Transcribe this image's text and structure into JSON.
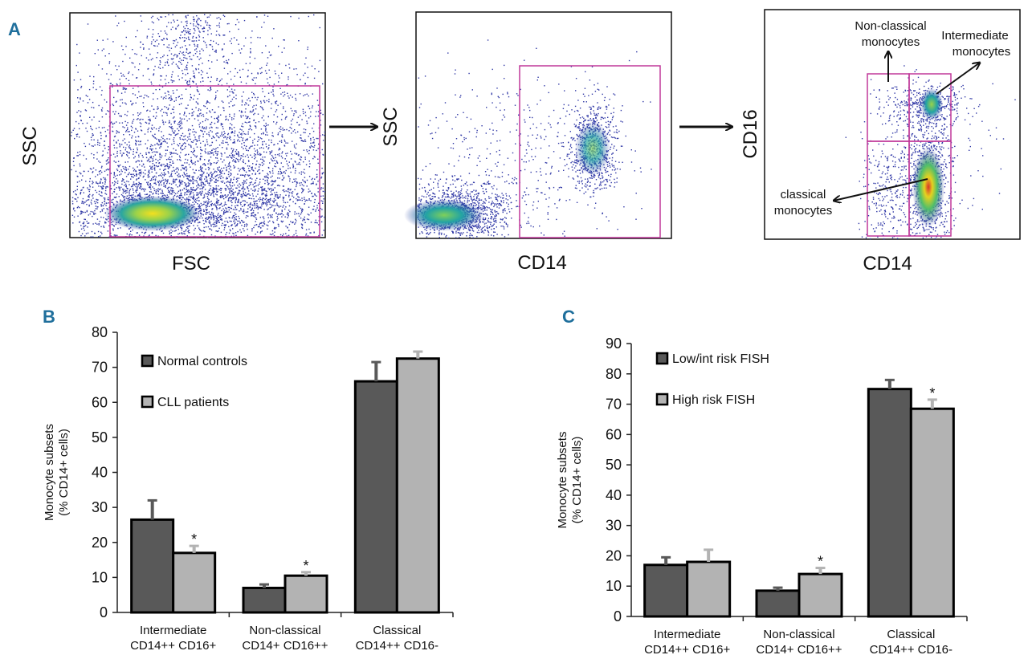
{
  "panel_letters": {
    "a": "A",
    "b": "B",
    "c": "C"
  },
  "flow": {
    "plot1": {
      "x_label": "FSC",
      "y_label": "SSC"
    },
    "plot2": {
      "x_label": "CD14",
      "y_label": "SSC"
    },
    "plot3": {
      "x_label": "CD14",
      "y_label": "CD16",
      "annotations": {
        "nonclassical_1": "Non-classical",
        "nonclassical_2": "monocytes",
        "intermediate_1": "Intermediate",
        "intermediate_2": "monocytes",
        "classical_1": "classical",
        "classical_2": "monocytes"
      }
    }
  },
  "colors": {
    "dark_bar": "#595959",
    "light_bar": "#b3b3b3",
    "gate": "#c0399a",
    "panel_letter": "#1f6f9c",
    "dot": "#3038a6"
  },
  "chart_data": [
    {
      "id": "B",
      "type": "bar",
      "ylabel_line1": "Monocyte subsets",
      "ylabel_line2": "(% CD14+ cells)",
      "ylim": [
        0,
        80
      ],
      "ytick_step": 10,
      "ytick_labels": [
        "0",
        "10",
        "20",
        "30",
        "40",
        "50",
        "60",
        "70",
        "80"
      ],
      "categories": [
        {
          "name": "Intermediate",
          "markers": "CD14++ CD16+"
        },
        {
          "name": "Non-classical",
          "markers": "CD14+ CD16++"
        },
        {
          "name": "Classical",
          "markers": "CD14++ CD16-"
        }
      ],
      "series": [
        {
          "name": "Normal controls",
          "color": "#595959",
          "values": [
            26.5,
            7,
            66
          ],
          "errors": [
            5.5,
            1,
            5.5
          ]
        },
        {
          "name": "CLL patients",
          "color": "#b3b3b3",
          "values": [
            17,
            10.5,
            72.5
          ],
          "errors": [
            2,
            1,
            2
          ]
        }
      ],
      "significance": [
        {
          "category": 0,
          "series": 1,
          "label": "*"
        },
        {
          "category": 1,
          "series": 1,
          "label": "*"
        }
      ]
    },
    {
      "id": "C",
      "type": "bar",
      "ylabel_line1": "Monocyte subsets",
      "ylabel_line2": "(% CD14+ cells)",
      "ylim": [
        0,
        90
      ],
      "ytick_step": 10,
      "ytick_labels": [
        "0",
        "10",
        "20",
        "30",
        "40",
        "50",
        "60",
        "70",
        "80",
        "90"
      ],
      "categories": [
        {
          "name": "Intermediate",
          "markers": "CD14++ CD16+"
        },
        {
          "name": "Non-classical",
          "markers": "CD14+ CD16++"
        },
        {
          "name": "Classical",
          "markers": "CD14++ CD16-"
        }
      ],
      "series": [
        {
          "name": "Low/int risk FISH",
          "color": "#595959",
          "values": [
            17,
            8.5,
            75
          ],
          "errors": [
            2.5,
            1,
            3
          ]
        },
        {
          "name": "High risk FISH",
          "color": "#b3b3b3",
          "values": [
            18,
            14,
            68.5
          ],
          "errors": [
            4,
            2,
            3
          ]
        }
      ],
      "significance": [
        {
          "category": 1,
          "series": 1,
          "label": "*"
        },
        {
          "category": 2,
          "series": 1,
          "label": "*"
        }
      ]
    }
  ]
}
